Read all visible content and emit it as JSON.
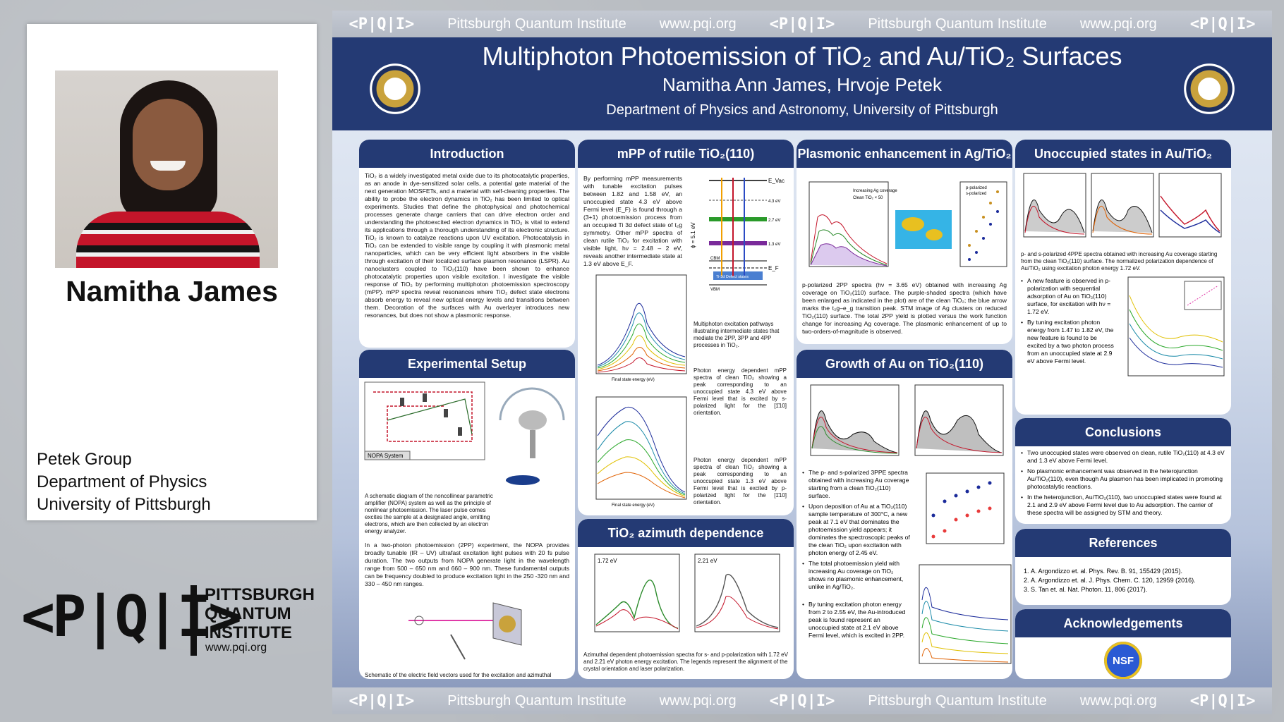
{
  "presenter": {
    "name": "Namitha James",
    "affiliation": [
      "Petek Group",
      "Department of Physics",
      "University of Pittsburgh"
    ]
  },
  "pqi_logo": {
    "mark": "<P|Q|I>",
    "lines": [
      "PITTSBURGH",
      "QUANTUM",
      "INSTITUTE"
    ],
    "url": "www.pqi.org"
  },
  "strip": {
    "mark": "<P|Q|I>",
    "name": "Pittsburgh Quantum Institute",
    "url": "www.pqi.org"
  },
  "poster": {
    "title": "Multiphoton Photoemission of TiO₂ and Au/TiO₂ Surfaces",
    "authors": "Namitha Ann James, Hrvoje Petek",
    "department": "Department of Physics and Astronomy, University of Pittsburgh"
  },
  "sections": {
    "introduction": {
      "title": "Introduction",
      "text": "TiO₂ is a widely investigated metal oxide due to its photocatalytic properties, as an anode in dye-sensitized solar cells, a potential gate material of the next generation MOSFETs, and a material with self-cleaning properties. The ability to probe the electron dynamics in TiO₂ has been limited to optical experiments. Studies that define the photophysical and photochemical processes generate charge carriers that can drive electron order and understanding the photoexcited electron dynamics in TiO₂ is vital to extend its applications through a thorough understanding of its electronic structure. TiO₂ is known to catalyze reactions upon UV excitation. Photocatalysis in TiO₂ can be extended to visible range by coupling it with plasmonic metal nanoparticles, which can be very efficient light absorbers in the visible through excitation of their localized surface plasmon resonance (LSPR). Au nanoclusters coupled to TiO₂(110) have been shown to enhance photocatalytic properties upon visible excitation. I investigate the visible response of TiO₂ by performing multiphoton photoemission spectroscopy (mPP). mPP spectra reveal resonances where TiO₂ defect state electrons absorb energy to reveal new optical energy levels and transitions between them. Decoration of the surfaces with Au overlayer introduces new resonances, but does not show a plasmonic response."
    },
    "setup": {
      "title": "Experimental Setup",
      "nopa_label": "NOPA System",
      "fig_caption": "A schematic diagram of the noncollinear parametric amplifier (NOPA) system as well as the principle of nonlinear photoemission. The laser pulse comes excites the sample at a designated angle, emitting electrons, which are then collected by an electron energy analyzer.",
      "text": "In a two-photon photoemission (2PP) experiment, the NOPA provides broadly tunable (IR – UV) ultrafast excitation light pulses with 20 fs pulse duration. The two outputs from NOPA generate light in the wavelength range from 500 – 650 nm and 660 – 900 nm. These fundamental outputs can be frequency doubled to produce excitation light in the 250 -320 nm and 330 – 450 nm ranges.",
      "bottom_caption": "Schematic of the electric field vectors used for the excitation and azimuthal alignment of the sample with respect to the optical plane (grey shading)."
    },
    "mpp": {
      "title": "mPP of rutile TiO₂(110)",
      "text": "By performing mPP measurements with tunable excitation pulses between 1.82 and 1.58 eV, an unoccupied state 4.3 eV above Fermi level (E_F) is found through a (3+1) photoemission process from an occupied Ti 3d defect state of t₂g symmetry. Other mPP spectra of clean rutile TiO₂ for excitation with visible light, hν = 2.48 – 2 eV, reveals another intermediate state at 1.3 eV above E_F.",
      "levels": [
        "E_Vac",
        "4.3 eV",
        "2.7 eV",
        "1.3 eV",
        "CBM",
        "E_F",
        "Ti-3d Defect states",
        "VBM"
      ],
      "phi_label": "ϕ = 5.1 eV",
      "pathways_caption": "Multiphoton excitation pathways illustrating intermediate states that mediate the 2PP, 3PP and 4PP processes in TiO₂.",
      "caption_s": "Photon energy dependent mPP spectra of clean TiO₂ showing a peak corresponding to an unoccupied state 4.3 eV above Fermi level that is excited by s-polarized light for the [1̄10] orientation.",
      "caption_p": "Photon energy dependent mPP spectra of clean TiO₂ showing a peak corresponding to an unoccupied state 1.3 eV above Fermi level that is excited by p-polarized light for the [1̄10] orientation.",
      "axis_label": "Final state energy (eV)"
    },
    "azimuth": {
      "title": "TiO₂ azimuth dependence",
      "label_left": "1.72 eV",
      "label_right": "2.21 eV",
      "caption": "Azimuthal dependent photoemission spectra for s- and p-polarization with 1.72 eV and 2.21 eV photon energy excitation. The legends represent the alignment of the crystal orientation and laser polarization."
    },
    "plasmonic": {
      "title": "Plasmonic enhancement in Ag/TiO₂",
      "legend": [
        "Increasing Ag coverage",
        "Clean TiO₂ × 50"
      ],
      "legend2": [
        "p-polarized",
        "s-polarized"
      ],
      "caption": "p-polarized 2PP spectra (hν = 3.65 eV) obtained with increasing Ag coverage on TiO₂(110) surface. The purple-shaded spectra (which have been enlarged as indicated in the plot) are of the clean TiO₂; the blue arrow marks the t₂g–e_g transition peak. STM image of Ag clusters on reduced TiO₂(110) surface. The total 2PP yield is plotted versus the work function change for increasing Ag coverage. The plasmonic enhancement of up to two-orders-of-magnitude is observed."
    },
    "growth": {
      "title": "Growth of Au on TiO₂(110)",
      "bullets": [
        "The p- and s-polarized 3PPE spectra obtained with increasing Au coverage starting from a clean TiO₂(110) surface.",
        "Upon deposition of Au at a TiO₂(110) sample temperature of 300°C, a new peak at 7.1 eV that dominates the photoemission yield appears; it dominates the spectroscopic peaks of the clean TiO₂ upon excitation with photon energy of 2.45 eV.",
        "The total photoemission yield with increasing Au coverage on TiO₂ shows no plasmonic enhancement, unlike in Ag/TiO₂.",
        "By tuning excitation photon energy from 2 to 2.55 eV, the Au-introduced peak is found represent an unoccupied state at 2.1 eV above Fermi level, which is excited in 2PP."
      ]
    },
    "unoccupied": {
      "title": "Unoccupied states in Au/TiO₂",
      "caption": "p- and s-polarized 4PPE spectra obtained with increasing Au coverage starting from the clean TiO₂(110) surface. The normalized polarization dependence of Au/TiO₂ using excitation photon energy 1.72 eV.",
      "bullets": [
        "A new feature is observed in p-polarization with sequential adsorption of Au on TiO₂(110) surface, for excitation with hν = 1.72 eV.",
        "By tuning excitation photon energy from 1.47 to 1.82 eV, the new feature is found to be excited by a two photon process from an unoccupied state at 2.9 eV above Fermi level."
      ]
    },
    "conclusions": {
      "title": "Conclusions",
      "bullets": [
        "Two unoccupied states were observed on clean, rutile TiO₂(110) at 4.3 eV and 1.3 eV above Fermi level.",
        "No plasmonic enhancement was observed in the heterojunction Au/TiO₂(110), even though Au plasmon has been implicated in promoting photocatalytic reactions.",
        "In the heterojunction, Au/TiO₂(110), two unoccupied states were found at 2.1 and 2.9 eV above Fermi level due to Au adsorption. The carrier of these spectra will be assigned by STM and theory."
      ]
    },
    "references": {
      "title": "References",
      "items": [
        "A. Argondizzo et. al. Phys. Rev. B. 91, 155429 (2015).",
        "A. Argondizzo et. al. J. Phys. Chem. C. 120, 12959 (2016).",
        "S. Tan et. al. Nat. Photon. 11, 806 (2017)."
      ]
    },
    "acknowledgements": {
      "title": "Acknowledgements",
      "logo_text": "NSF"
    }
  },
  "colors": {
    "banner": "#243a74",
    "header": "#243a74",
    "accent_red": "#c4152a"
  }
}
